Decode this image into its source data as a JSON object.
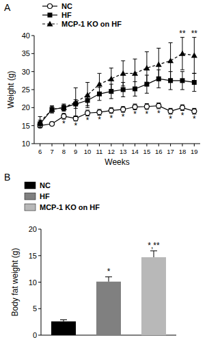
{
  "chart_data": [
    {
      "type": "line",
      "title": "A",
      "x_label": "Weeks",
      "y_label": "Weight (g)",
      "x": [
        6,
        7,
        8,
        9,
        10,
        11,
        12,
        13,
        14,
        15,
        16,
        17,
        18,
        19
      ],
      "xlim": [
        5.5,
        19.5
      ],
      "xticks": [
        6,
        7,
        8,
        9,
        10,
        11,
        12,
        13,
        14,
        15,
        16,
        17,
        18,
        19
      ],
      "ylim": [
        10,
        40
      ],
      "yticks": [
        10,
        15,
        20,
        25,
        30,
        35,
        40
      ],
      "legend": "top-left",
      "series": [
        {
          "name": "NC",
          "color": "#000000",
          "marker": "circle-open",
          "line_style": "solid",
          "values": [
            15,
            15.5,
            17.6,
            17,
            18.5,
            18.7,
            19.2,
            19.5,
            20.2,
            20.3,
            20.5,
            19,
            20,
            19
          ],
          "errors": [
            0.6,
            0.5,
            0.8,
            0.7,
            0.8,
            0.8,
            0.8,
            0.8,
            0.8,
            0.8,
            0.8,
            0.8,
            0.8,
            0.8
          ]
        },
        {
          "name": "HF",
          "color": "#000000",
          "marker": "square",
          "line_style": "solid",
          "values": [
            15.5,
            19.5,
            20,
            21,
            22,
            23.8,
            24.5,
            25,
            25.2,
            26.5,
            28,
            27.5,
            27.5,
            27
          ],
          "errors": [
            1,
            0.8,
            0.8,
            1.2,
            1.5,
            1.8,
            2,
            2,
            2,
            2.5,
            2.5,
            2.5,
            2.5,
            2.5
          ]
        },
        {
          "name": "MCP-1 KO on HF",
          "color": "#000000",
          "marker": "triangle",
          "line_style": "dashed",
          "values": [
            16,
            19.5,
            20,
            21.5,
            23.5,
            26.5,
            28,
            29.5,
            29.5,
            31,
            32,
            33,
            35,
            34.5
          ],
          "errors": [
            1.5,
            1,
            1,
            4,
            3.5,
            3,
            3,
            3.5,
            4,
            4.5,
            4.5,
            5,
            4.5,
            5
          ]
        }
      ],
      "annotations": [
        {
          "text": "*",
          "x": 8,
          "series": "NC"
        },
        {
          "text": "*",
          "x": 9,
          "series": "NC"
        },
        {
          "text": "*",
          "x": 10,
          "series": "NC"
        },
        {
          "text": "*",
          "x": 11,
          "series": "NC"
        },
        {
          "text": "*",
          "x": 12,
          "series": "NC"
        },
        {
          "text": "*",
          "x": 13,
          "series": "NC"
        },
        {
          "text": "*",
          "x": 14,
          "series": "NC"
        },
        {
          "text": "*",
          "x": 15,
          "series": "NC"
        },
        {
          "text": "*",
          "x": 16,
          "series": "NC"
        },
        {
          "text": "*",
          "x": 17,
          "series": "NC"
        },
        {
          "text": "*",
          "x": 18,
          "series": "NC"
        },
        {
          "text": "*",
          "x": 19,
          "series": "NC"
        },
        {
          "text": "**",
          "x": 18,
          "series": "MCP-1 KO on HF"
        },
        {
          "text": "**",
          "x": 19,
          "series": "MCP-1 KO on HF"
        }
      ]
    },
    {
      "type": "bar",
      "title": "B",
      "y_label": "Body fat weight (g)",
      "categories": [
        "NC",
        "HF",
        "MCP-1 KO on HF"
      ],
      "values": [
        2.6,
        10.1,
        14.7
      ],
      "errors": [
        0.3,
        0.9,
        1.2
      ],
      "colors": [
        "#000000",
        "#808080",
        "#b8b8b8"
      ],
      "ylim": [
        0,
        20
      ],
      "yticks": [
        0,
        5,
        10,
        15,
        20
      ],
      "legend": "top-left",
      "tick_labels": "y",
      "annotations": [
        {
          "text": "*",
          "category": "HF"
        },
        {
          "text": "*,**",
          "category": "MCP-1 KO on HF"
        }
      ]
    }
  ]
}
